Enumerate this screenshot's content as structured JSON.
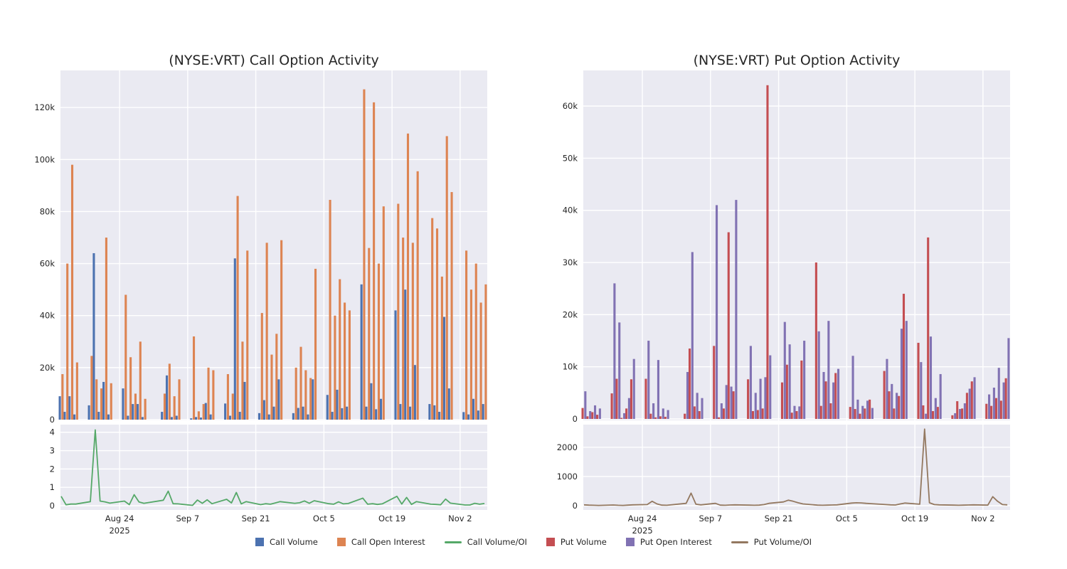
{
  "page": {
    "background": "#ffffff",
    "plot_background": "#eaeaf2",
    "gridline_color": "#ffffff",
    "text_color": "#262626"
  },
  "titles": {
    "call_chart": "(NYSE:VRT) Call Option Activity",
    "put_chart": "(NYSE:VRT) Put Option Activity"
  },
  "legend": {
    "items": [
      {
        "label": "Call Volume",
        "color": "#4c72b0",
        "swatch": "square"
      },
      {
        "label": "Call Open Interest",
        "color": "#dd8452",
        "swatch": "square"
      },
      {
        "label": "Call Volume/OI",
        "color": "#55a868",
        "swatch": "line"
      },
      {
        "label": "Put Volume",
        "color": "#c44e52",
        "swatch": "square"
      },
      {
        "label": "Put Open Interest",
        "color": "#8172b3",
        "swatch": "square"
      },
      {
        "label": "Put Volume/OI",
        "color": "#937860",
        "swatch": "line"
      }
    ]
  },
  "chart_data": {
    "x_categories": [
      "Aug 12",
      "Aug 13",
      "Aug 14",
      "Aug 15",
      "Aug 18",
      "Aug 19",
      "Aug 20",
      "Aug 21",
      "Aug 22",
      "Aug 25",
      "Aug 26",
      "Aug 27",
      "Aug 28",
      "Aug 29",
      "Sep 2",
      "Sep 3",
      "Sep 4",
      "Sep 5",
      "Sep 8",
      "Sep 9",
      "Sep 10",
      "Sep 11",
      "Sep 12",
      "Sep 15",
      "Sep 16",
      "Sep 17",
      "Sep 18",
      "Sep 19",
      "Sep 22",
      "Sep 23",
      "Sep 24",
      "Sep 25",
      "Sep 26",
      "Sep 29",
      "Sep 30",
      "Oct 1",
      "Oct 2",
      "Oct 3",
      "Oct 6",
      "Oct 7",
      "Oct 8",
      "Oct 9",
      "Oct 10",
      "Oct 13",
      "Oct 14",
      "Oct 15",
      "Oct 16",
      "Oct 17",
      "Oct 20",
      "Oct 21",
      "Oct 22",
      "Oct 23",
      "Oct 24",
      "Oct 27",
      "Oct 28",
      "Oct 29",
      "Oct 30",
      "Oct 31",
      "Nov 3",
      "Nov 4",
      "Nov 5",
      "Nov 6",
      "Nov 7"
    ],
    "x_day_offsets": [
      0,
      1,
      2,
      3,
      6,
      7,
      8,
      9,
      10,
      13,
      14,
      15,
      16,
      17,
      21,
      22,
      23,
      24,
      27,
      28,
      29,
      30,
      31,
      34,
      35,
      36,
      37,
      38,
      41,
      42,
      43,
      44,
      45,
      48,
      49,
      50,
      51,
      52,
      55,
      56,
      57,
      58,
      59,
      62,
      63,
      64,
      65,
      66,
      69,
      70,
      71,
      72,
      73,
      76,
      77,
      78,
      79,
      80,
      83,
      84,
      85,
      86,
      87
    ],
    "x_ticks": [
      {
        "label": "Aug 24",
        "sublabel": "2025",
        "day_offset": 12
      },
      {
        "label": "Sep 7",
        "sublabel": "",
        "day_offset": 26
      },
      {
        "label": "Sep 21",
        "sublabel": "",
        "day_offset": 40
      },
      {
        "label": "Oct 5",
        "sublabel": "",
        "day_offset": 54
      },
      {
        "label": "Oct 19",
        "sublabel": "",
        "day_offset": 68
      },
      {
        "label": "Nov 2",
        "sublabel": "",
        "day_offset": 82
      }
    ],
    "charts": [
      {
        "id": "call-option-activity",
        "type": "bar",
        "title": "(NYSE:VRT) Call Option Activity",
        "ylim": [
          0,
          134000
        ],
        "y_ticks": [
          {
            "v": 0,
            "label": "0"
          },
          {
            "v": 20000,
            "label": "20k"
          },
          {
            "v": 40000,
            "label": "40k"
          },
          {
            "v": 60000,
            "label": "60k"
          },
          {
            "v": 80000,
            "label": "80k"
          },
          {
            "v": 100000,
            "label": "100k"
          },
          {
            "v": 120000,
            "label": "120k"
          }
        ],
        "series": [
          {
            "name": "Call Volume",
            "color": "#4c72b0",
            "values": [
              9000,
              3000,
              9000,
              2000,
              5500,
              64000,
              3000,
              14500,
              2000,
              12000,
              1500,
              6000,
              6000,
              1000,
              3000,
              17000,
              1000,
              1500,
              500,
              1000,
              800,
              6400,
              2000,
              6200,
              1500,
              62000,
              3000,
              14500,
              2500,
              7500,
              2000,
              5000,
              15500,
              2500,
              4500,
              5000,
              2000,
              15500,
              9500,
              3000,
              11500,
              4400,
              5000,
              52000,
              5000,
              14000,
              4000,
              8000,
              42000,
              6000,
              50000,
              5000,
              21000,
              6000,
              5500,
              3000,
              39500,
              12000,
              2900,
              2000,
              8000,
              3500,
              6000
            ]
          },
          {
            "name": "Call Open Interest",
            "color": "#dd8452",
            "values": [
              17500,
              60000,
              98000,
              22000,
              24500,
              15500,
              12000,
              70000,
              14000,
              48000,
              24000,
              10000,
              30000,
              8000,
              10000,
              21500,
              9000,
              15500,
              32000,
              3200,
              6000,
              20000,
              19000,
              17500,
              10000,
              86000,
              30000,
              65000,
              41000,
              68000,
              25000,
              33000,
              69000,
              20000,
              28000,
              19000,
              16000,
              58000,
              84500,
              40000,
              54000,
              45000,
              42000,
              127000,
              66000,
              122000,
              60000,
              82000,
              83000,
              70000,
              110000,
              68000,
              95500,
              77500,
              73500,
              55000,
              109000,
              87500,
              65000,
              50000,
              60000,
              45000,
              52000
            ]
          }
        ]
      },
      {
        "id": "call-volume-oi-ratio",
        "type": "line",
        "title": "",
        "ylim": [
          0,
          4.3
        ],
        "y_ticks": [
          {
            "v": 0,
            "label": "0"
          },
          {
            "v": 1,
            "label": "1"
          },
          {
            "v": 2,
            "label": "2"
          },
          {
            "v": 3,
            "label": "3"
          },
          {
            "v": 4,
            "label": "4"
          }
        ],
        "series": [
          {
            "name": "Call Volume/OI",
            "color": "#55a868",
            "values": [
              0.51,
              0.05,
              0.09,
              0.09,
              0.22,
              4.13,
              0.25,
              0.21,
              0.14,
              0.25,
              0.06,
              0.6,
              0.2,
              0.13,
              0.3,
              0.79,
              0.11,
              0.1,
              0.02,
              0.31,
              0.13,
              0.32,
              0.11,
              0.35,
              0.15,
              0.72,
              0.1,
              0.22,
              0.06,
              0.11,
              0.08,
              0.15,
              0.22,
              0.13,
              0.16,
              0.26,
              0.13,
              0.27,
              0.11,
              0.08,
              0.21,
              0.1,
              0.12,
              0.41,
              0.08,
              0.11,
              0.07,
              0.1,
              0.51,
              0.09,
              0.45,
              0.07,
              0.22,
              0.08,
              0.07,
              0.05,
              0.36,
              0.14,
              0.04,
              0.04,
              0.13,
              0.08,
              0.12
            ]
          }
        ]
      },
      {
        "id": "put-option-activity",
        "type": "bar",
        "title": "(NYSE:VRT) Put Option Activity",
        "ylim": [
          0,
          66700
        ],
        "y_ticks": [
          {
            "v": 0,
            "label": "0"
          },
          {
            "v": 10000,
            "label": "10k"
          },
          {
            "v": 20000,
            "label": "20k"
          },
          {
            "v": 30000,
            "label": "30k"
          },
          {
            "v": 40000,
            "label": "40k"
          },
          {
            "v": 50000,
            "label": "50k"
          },
          {
            "v": 60000,
            "label": "60k"
          }
        ],
        "series": [
          {
            "name": "Put Volume",
            "color": "#c44e52",
            "values": [
              2100,
              500,
              1300,
              800,
              4900,
              7700,
              200,
              2000,
              7600,
              7700,
              1000,
              300,
              500,
              400,
              1000,
              13500,
              2400,
              1500,
              14000,
              300,
              2000,
              35800,
              5300,
              7600,
              1500,
              1700,
              2000,
              64000,
              7000,
              10400,
              1200,
              1500,
              11200,
              30000,
              2500,
              7200,
              3000,
              8800,
              2300,
              1900,
              1000,
              2000,
              3700,
              9200,
              5300,
              2000,
              4400,
              24000,
              14600,
              2600,
              34800,
              1500,
              2300,
              700,
              3400,
              2000,
              5000,
              7200,
              2900,
              2500,
              4000,
              3500,
              7800
            ]
          },
          {
            "name": "Put Open Interest",
            "color": "#8172b3",
            "values": [
              5300,
              1500,
              2600,
              2000,
              26000,
              18500,
              1100,
              4000,
              11500,
              15000,
              3000,
              11300,
              2000,
              1700,
              9000,
              32000,
              5000,
              4000,
              41000,
              3000,
              6500,
              6200,
              42000,
              14000,
              5000,
              7700,
              8000,
              12200,
              18600,
              14300,
              2500,
              2400,
              15000,
              16800,
              9000,
              18800,
              7000,
              9600,
              12100,
              3700,
              2500,
              3500,
              2100,
              11500,
              6700,
              5000,
              17300,
              18800,
              10900,
              1000,
              15800,
              4000,
              8600,
              1100,
              1900,
              3000,
              5800,
              8000,
              4700,
              6000,
              9800,
              7000,
              15500
            ]
          }
        ]
      },
      {
        "id": "put-volume-oi-ratio",
        "type": "line",
        "title": "",
        "ylim": [
          0,
          2700
        ],
        "y_ticks": [
          {
            "v": 0,
            "label": "0"
          },
          {
            "v": 1000,
            "label": "1000"
          },
          {
            "v": 2000,
            "label": "2000"
          }
        ],
        "series": [
          {
            "name": "Put Volume/OI",
            "color": "#937860",
            "values": [
              30,
              20,
              15,
              10,
              25,
              15,
              10,
              20,
              30,
              40,
              150,
              60,
              20,
              15,
              80,
              430,
              50,
              30,
              80,
              20,
              15,
              25,
              30,
              20,
              15,
              20,
              40,
              80,
              130,
              190,
              150,
              100,
              60,
              20,
              15,
              20,
              25,
              30,
              90,
              100,
              95,
              80,
              70,
              40,
              30,
              25,
              60,
              90,
              50,
              2620,
              100,
              40,
              30,
              20,
              15,
              20,
              25,
              30,
              20,
              310,
              150,
              40,
              30
            ]
          }
        ]
      }
    ]
  }
}
